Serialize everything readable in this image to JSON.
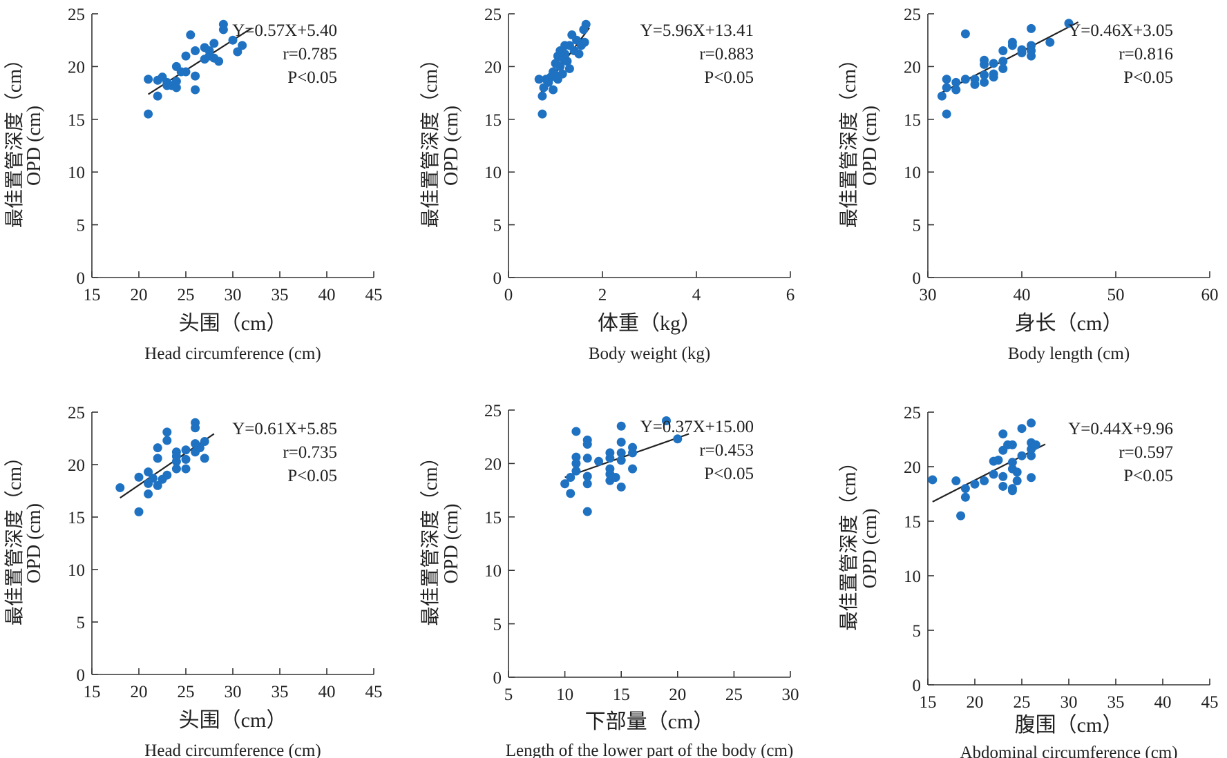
{
  "chart_data": [
    {
      "type": "scatter",
      "xlabel_cn": "头围（cm）",
      "xlabel_en": "Head circumference (cm)",
      "ylabel_cn": "最佳置管深度（cm）",
      "ylabel_en": "OPD (cm)",
      "xlim": [
        15,
        45
      ],
      "ylim": [
        0,
        25
      ],
      "xticks": [
        "15",
        "20",
        "25",
        "30",
        "35",
        "40",
        "45"
      ],
      "yticks": [
        "0",
        "5",
        "10",
        "15",
        "20",
        "25"
      ],
      "equation": "Y=0.57X+5.40",
      "r_text": "r=0.785",
      "p_text": "P<0.05",
      "fit": {
        "slope": 0.57,
        "intercept": 5.4,
        "x_range": [
          21,
          32
        ]
      },
      "points": [
        {
          "x": 21,
          "y": 18.8
        },
        {
          "x": 21,
          "y": 15.5
        },
        {
          "x": 22,
          "y": 17.2
        },
        {
          "x": 22,
          "y": 18.7
        },
        {
          "x": 22.5,
          "y": 19
        },
        {
          "x": 23,
          "y": 18.5
        },
        {
          "x": 23.5,
          "y": 18.2
        },
        {
          "x": 24,
          "y": 18.6
        },
        {
          "x": 24,
          "y": 20
        },
        {
          "x": 24,
          "y": 18
        },
        {
          "x": 24.5,
          "y": 19.5
        },
        {
          "x": 25,
          "y": 21
        },
        {
          "x": 25,
          "y": 19.5
        },
        {
          "x": 25.5,
          "y": 23
        },
        {
          "x": 26,
          "y": 17.8
        },
        {
          "x": 26,
          "y": 19.1
        },
        {
          "x": 26,
          "y": 21.5
        },
        {
          "x": 27,
          "y": 21.8
        },
        {
          "x": 27,
          "y": 20.7
        },
        {
          "x": 27.5,
          "y": 21
        },
        {
          "x": 28,
          "y": 22.2
        },
        {
          "x": 28,
          "y": 20.8
        },
        {
          "x": 28.5,
          "y": 20.5
        },
        {
          "x": 29,
          "y": 24
        },
        {
          "x": 29,
          "y": 23.5
        },
        {
          "x": 30,
          "y": 22.5
        },
        {
          "x": 30.5,
          "y": 21.4
        },
        {
          "x": 31,
          "y": 22
        },
        {
          "x": 27.5,
          "y": 21.5
        },
        {
          "x": 23,
          "y": 18.2
        }
      ]
    },
    {
      "type": "scatter",
      "xlabel_cn": "体重（kg）",
      "xlabel_en": "Body weight (kg)",
      "ylabel_cn": "最佳置管深度（cm）",
      "ylabel_en": "OPD (cm)",
      "xlim": [
        0,
        6
      ],
      "ylim": [
        0,
        25
      ],
      "xticks": [
        "0",
        "2",
        "4",
        "6"
      ],
      "yticks": [
        "0",
        "5",
        "10",
        "15",
        "20",
        "25"
      ],
      "equation": "Y=5.96X+13.41",
      "r_text": "r=0.883",
      "p_text": "P<0.05",
      "fit": {
        "slope": 5.96,
        "intercept": 13.41,
        "x_range": [
          0.68,
          1.72
        ]
      },
      "points": [
        {
          "x": 0.65,
          "y": 18.8
        },
        {
          "x": 0.72,
          "y": 15.5
        },
        {
          "x": 0.72,
          "y": 17.2
        },
        {
          "x": 0.75,
          "y": 18
        },
        {
          "x": 0.8,
          "y": 18.8
        },
        {
          "x": 0.85,
          "y": 18.5
        },
        {
          "x": 0.9,
          "y": 19
        },
        {
          "x": 0.95,
          "y": 17.8
        },
        {
          "x": 0.95,
          "y": 19.5
        },
        {
          "x": 1.0,
          "y": 19.2
        },
        {
          "x": 1.0,
          "y": 20.3
        },
        {
          "x": 1.05,
          "y": 21
        },
        {
          "x": 1.05,
          "y": 18.8
        },
        {
          "x": 1.1,
          "y": 20
        },
        {
          "x": 1.1,
          "y": 21.5
        },
        {
          "x": 1.15,
          "y": 19.3
        },
        {
          "x": 1.15,
          "y": 20.8
        },
        {
          "x": 1.2,
          "y": 21.2
        },
        {
          "x": 1.25,
          "y": 20.5
        },
        {
          "x": 1.3,
          "y": 19.8
        },
        {
          "x": 1.3,
          "y": 22
        },
        {
          "x": 1.35,
          "y": 23
        },
        {
          "x": 1.4,
          "y": 21.5
        },
        {
          "x": 1.45,
          "y": 22.5
        },
        {
          "x": 1.5,
          "y": 21.2
        },
        {
          "x": 1.55,
          "y": 22
        },
        {
          "x": 1.6,
          "y": 23.5
        },
        {
          "x": 1.62,
          "y": 22.3
        },
        {
          "x": 1.65,
          "y": 24
        },
        {
          "x": 1.2,
          "y": 22
        }
      ]
    },
    {
      "type": "scatter",
      "xlabel_cn": "身长（cm）",
      "xlabel_en": "Body length (cm)",
      "ylabel_cn": "最佳置管深度（cm）",
      "ylabel_en": "OPD (cm)",
      "xlim": [
        30,
        60
      ],
      "ylim": [
        0,
        25
      ],
      "xticks": [
        "30",
        "40",
        "50",
        "60"
      ],
      "yticks": [
        "0",
        "5",
        "10",
        "15",
        "20",
        "25"
      ],
      "equation": "Y=0.46X+3.05",
      "r_text": "r=0.816",
      "p_text": "P<0.05",
      "fit": {
        "slope": 0.46,
        "intercept": 3.05,
        "x_range": [
          31.3,
          46
        ]
      },
      "points": [
        {
          "x": 31.5,
          "y": 17.2
        },
        {
          "x": 32,
          "y": 18
        },
        {
          "x": 32,
          "y": 15.5
        },
        {
          "x": 32,
          "y": 18.8
        },
        {
          "x": 33,
          "y": 18.5
        },
        {
          "x": 33,
          "y": 17.8
        },
        {
          "x": 34,
          "y": 18.8
        },
        {
          "x": 34,
          "y": 23.1
        },
        {
          "x": 35,
          "y": 18.3
        },
        {
          "x": 35,
          "y": 18.8
        },
        {
          "x": 36,
          "y": 18.5
        },
        {
          "x": 36,
          "y": 19.2
        },
        {
          "x": 36,
          "y": 20.2
        },
        {
          "x": 36,
          "y": 20.6
        },
        {
          "x": 37,
          "y": 19.3
        },
        {
          "x": 37,
          "y": 19
        },
        {
          "x": 37,
          "y": 20.3
        },
        {
          "x": 38,
          "y": 19.8
        },
        {
          "x": 38,
          "y": 20.5
        },
        {
          "x": 38,
          "y": 21.5
        },
        {
          "x": 39,
          "y": 22
        },
        {
          "x": 39,
          "y": 22.3
        },
        {
          "x": 40,
          "y": 21.3
        },
        {
          "x": 40,
          "y": 21.6
        },
        {
          "x": 41,
          "y": 21
        },
        {
          "x": 41,
          "y": 21.5
        },
        {
          "x": 41,
          "y": 22
        },
        {
          "x": 41,
          "y": 23.6
        },
        {
          "x": 43,
          "y": 22.3
        },
        {
          "x": 45,
          "y": 24.1
        }
      ]
    },
    {
      "type": "scatter",
      "xlabel_cn": "头围（cm）",
      "xlabel_en": "Head circumference (cm)",
      "ylabel_cn": "最佳置管深度（cm）",
      "ylabel_en": "OPD (cm)",
      "xlim": [
        15,
        45
      ],
      "ylim": [
        0,
        25
      ],
      "xticks": [
        "15",
        "20",
        "25",
        "30",
        "35",
        "40",
        "45"
      ],
      "yticks": [
        "0",
        "5",
        "10",
        "15",
        "20",
        "25"
      ],
      "equation": "Y=0.61X+5.85",
      "r_text": "r=0.735",
      "p_text": "P<0.05",
      "fit": {
        "slope": 0.61,
        "intercept": 5.85,
        "x_range": [
          18,
          28
        ]
      },
      "points": [
        {
          "x": 18,
          "y": 17.8
        },
        {
          "x": 20,
          "y": 15.5
        },
        {
          "x": 20,
          "y": 18.8
        },
        {
          "x": 21,
          "y": 17.2
        },
        {
          "x": 21,
          "y": 18.2
        },
        {
          "x": 21,
          "y": 19.3
        },
        {
          "x": 21.5,
          "y": 18.7
        },
        {
          "x": 22,
          "y": 18
        },
        {
          "x": 22,
          "y": 20.6
        },
        {
          "x": 22,
          "y": 21.6
        },
        {
          "x": 22.5,
          "y": 18.6
        },
        {
          "x": 23,
          "y": 19
        },
        {
          "x": 23,
          "y": 22.3
        },
        {
          "x": 23,
          "y": 23.1
        },
        {
          "x": 24,
          "y": 19.6
        },
        {
          "x": 24,
          "y": 20.3
        },
        {
          "x": 24,
          "y": 21.2
        },
        {
          "x": 25,
          "y": 19.6
        },
        {
          "x": 25,
          "y": 20.5
        },
        {
          "x": 25,
          "y": 21.4
        },
        {
          "x": 26,
          "y": 21.2
        },
        {
          "x": 26,
          "y": 22
        },
        {
          "x": 26,
          "y": 23.5
        },
        {
          "x": 26,
          "y": 24
        },
        {
          "x": 27,
          "y": 20.6
        },
        {
          "x": 27,
          "y": 22.2
        },
        {
          "x": 24,
          "y": 20.8
        },
        {
          "x": 26.5,
          "y": 21.6
        }
      ]
    },
    {
      "type": "scatter",
      "xlabel_cn": "下部量（cm）",
      "xlabel_en": "Length of the lower part of the body (cm)",
      "ylabel_cn": "最佳置管深度（cm）",
      "ylabel_en": "OPD (cm)",
      "xlim": [
        5,
        30
      ],
      "ylim": [
        0,
        25
      ],
      "xticks": [
        "5",
        "10",
        "15",
        "20",
        "25",
        "30"
      ],
      "yticks": [
        "0",
        "5",
        "10",
        "15",
        "20",
        "25"
      ],
      "equation": "Y=0.37X+15.00",
      "r_text": "r=0.453",
      "p_text": "P<0.05",
      "fit": {
        "slope": 0.37,
        "intercept": 15.0,
        "x_range": [
          10,
          21
        ]
      },
      "points": [
        {
          "x": 10,
          "y": 18.1
        },
        {
          "x": 10.5,
          "y": 17.2
        },
        {
          "x": 10.5,
          "y": 18.7
        },
        {
          "x": 11,
          "y": 19.3
        },
        {
          "x": 11,
          "y": 20
        },
        {
          "x": 11,
          "y": 20.6
        },
        {
          "x": 11,
          "y": 23
        },
        {
          "x": 12,
          "y": 15.5
        },
        {
          "x": 12,
          "y": 18.1
        },
        {
          "x": 12,
          "y": 18.8
        },
        {
          "x": 12,
          "y": 20.5
        },
        {
          "x": 12,
          "y": 21.8
        },
        {
          "x": 12,
          "y": 22.2
        },
        {
          "x": 13,
          "y": 20.2
        },
        {
          "x": 14,
          "y": 18.4
        },
        {
          "x": 14,
          "y": 19
        },
        {
          "x": 14,
          "y": 19.5
        },
        {
          "x": 14,
          "y": 20.5
        },
        {
          "x": 14,
          "y": 21
        },
        {
          "x": 14.5,
          "y": 18.7
        },
        {
          "x": 15,
          "y": 17.8
        },
        {
          "x": 15,
          "y": 20.3
        },
        {
          "x": 15,
          "y": 21
        },
        {
          "x": 15,
          "y": 22
        },
        {
          "x": 15,
          "y": 23.5
        },
        {
          "x": 16,
          "y": 19.5
        },
        {
          "x": 16,
          "y": 21
        },
        {
          "x": 16,
          "y": 21.5
        },
        {
          "x": 19,
          "y": 24
        },
        {
          "x": 20,
          "y": 22.3
        }
      ]
    },
    {
      "type": "scatter",
      "xlabel_cn": "腹围（cm）",
      "xlabel_en": "Abdominal circumference (cm)",
      "ylabel_cn": "最佳置管深度（cm）",
      "ylabel_en": "OPD (cm)",
      "xlim": [
        15,
        45
      ],
      "ylim": [
        0,
        25
      ],
      "xticks": [
        "15",
        "20",
        "25",
        "30",
        "35",
        "40",
        "45"
      ],
      "yticks": [
        "0",
        "5",
        "10",
        "15",
        "20",
        "25"
      ],
      "equation": "Y=0.44X+9.96",
      "r_text": "r=0.597",
      "p_text": "P<0.05",
      "fit": {
        "slope": 0.44,
        "intercept": 9.96,
        "x_range": [
          15.5,
          27.5
        ]
      },
      "points": [
        {
          "x": 15.5,
          "y": 18.8
        },
        {
          "x": 18,
          "y": 18.7
        },
        {
          "x": 18.5,
          "y": 15.5
        },
        {
          "x": 19,
          "y": 17.2
        },
        {
          "x": 19,
          "y": 18
        },
        {
          "x": 20,
          "y": 18.4
        },
        {
          "x": 21,
          "y": 18.7
        },
        {
          "x": 22,
          "y": 19.3
        },
        {
          "x": 22,
          "y": 20.5
        },
        {
          "x": 22.5,
          "y": 20.6
        },
        {
          "x": 23,
          "y": 18.2
        },
        {
          "x": 23,
          "y": 19.1
        },
        {
          "x": 23,
          "y": 21.5
        },
        {
          "x": 23,
          "y": 23
        },
        {
          "x": 23.5,
          "y": 22
        },
        {
          "x": 24,
          "y": 18
        },
        {
          "x": 24,
          "y": 17.8
        },
        {
          "x": 24,
          "y": 19.8
        },
        {
          "x": 24,
          "y": 20.4
        },
        {
          "x": 24,
          "y": 22
        },
        {
          "x": 24.5,
          "y": 18.7
        },
        {
          "x": 24.5,
          "y": 19.5
        },
        {
          "x": 25,
          "y": 21
        },
        {
          "x": 25,
          "y": 23.5
        },
        {
          "x": 26,
          "y": 19
        },
        {
          "x": 26,
          "y": 21
        },
        {
          "x": 26,
          "y": 21.6
        },
        {
          "x": 26,
          "y": 22.2
        },
        {
          "x": 26,
          "y": 24
        },
        {
          "x": 26.5,
          "y": 22
        }
      ]
    }
  ]
}
